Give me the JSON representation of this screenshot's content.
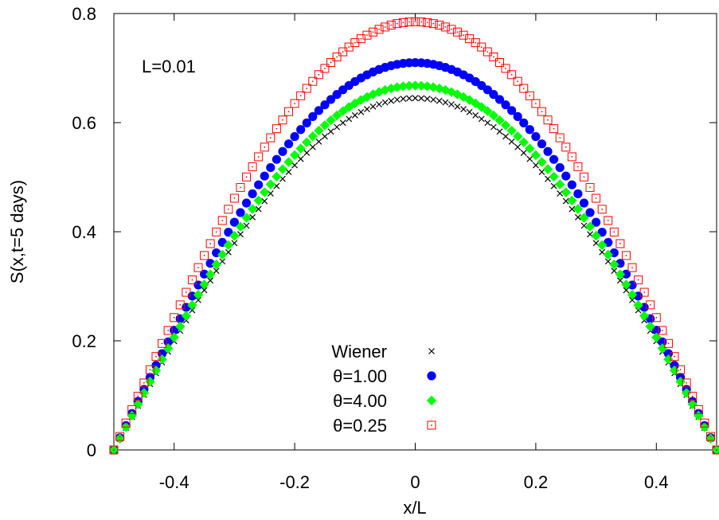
{
  "chart_data": {
    "type": "scatter",
    "xlabel": "x/L",
    "ylabel": "S(x,t=5 days)",
    "xlim": [
      -0.5,
      0.5
    ],
    "ylim": [
      0,
      0.8
    ],
    "xticks": [
      -0.4,
      -0.2,
      0,
      0.2,
      0.4
    ],
    "xtick_labels": [
      "-0.4",
      "-0.2",
      "0",
      "0.2",
      "0.4"
    ],
    "yticks": [
      0,
      0.2,
      0.4,
      0.6,
      0.8
    ],
    "ytick_labels": [
      "0",
      "0.2",
      "0.4",
      "0.6",
      "0.8"
    ],
    "grid": false,
    "legend_position": "bottom-center",
    "annotation": "L=0.01",
    "series": [
      {
        "name": "Wiener",
        "marker": "cross",
        "color": "#000000",
        "peak": 0.645,
        "points": 99
      },
      {
        "name": "θ=1.00",
        "marker": "circle",
        "color": "#0000ff",
        "peak": 0.71,
        "points": 99
      },
      {
        "name": "θ=4.00",
        "marker": "diamond",
        "color": "#00ff00",
        "peak": 0.668,
        "points": 99
      },
      {
        "name": "θ=0.25",
        "marker": "open-square",
        "color": "#ff0000",
        "peak": 0.785,
        "points": 99
      }
    ]
  }
}
